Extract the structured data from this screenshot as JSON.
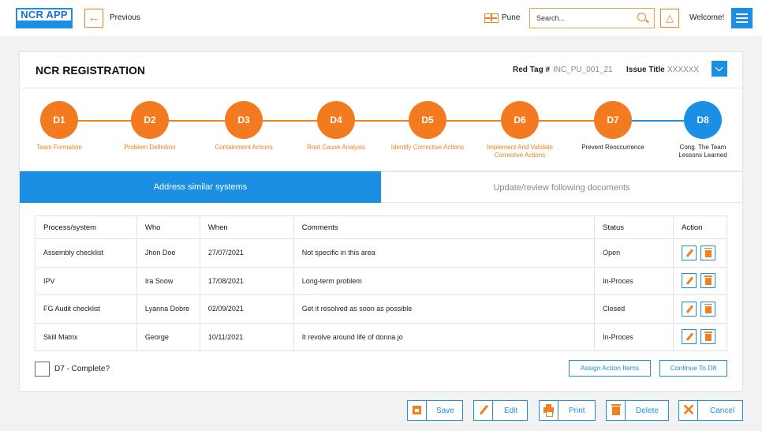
{
  "app": {
    "logo_text": "NCR APP",
    "back_label": "Previous",
    "location": "Pune",
    "search_placeholder": "Search...",
    "welcome": "Welcome!"
  },
  "page": {
    "title": "NCR REGISTRATION",
    "red_tag_label": "Red Tag #",
    "red_tag_value": "INC_PU_001_21",
    "issue_title_label": "Issue Title",
    "issue_title_value": "XXXXXX"
  },
  "steps": [
    {
      "id": "D1",
      "label": "Team Formation",
      "state": "done"
    },
    {
      "id": "D2",
      "label": "Problem Definition",
      "state": "done"
    },
    {
      "id": "D3",
      "label": "Containment Actions",
      "state": "done"
    },
    {
      "id": "D4",
      "label": "Root Cause Analysis",
      "state": "done"
    },
    {
      "id": "D5",
      "label": "Identify Corrective Actions",
      "state": "done"
    },
    {
      "id": "D6",
      "label": "Implement And Validate Corrective Actions",
      "state": "done"
    },
    {
      "id": "D7",
      "label": "Prevent Reoccurrence",
      "state": "active"
    },
    {
      "id": "D8",
      "label": "Cong. The Team Lessons Learned",
      "state": "current"
    }
  ],
  "tabs": {
    "active": "Address similar systems",
    "inactive": "Update/review following documents"
  },
  "table": {
    "headers": [
      "Process/system",
      "Who",
      "When",
      "Comments",
      "Status",
      "Action"
    ],
    "rows": [
      {
        "process": "Assembly checklist",
        "who": "Jhon Doe",
        "when": "27/07/2021",
        "comments": "Not specific in this area",
        "status": "Open"
      },
      {
        "process": "IPV",
        "who": "Ira Snow",
        "when": "17/08/2021",
        "comments": "Long-term problem",
        "status": "In-Proces"
      },
      {
        "process": "FG Audit checklist",
        "who": "Lyanna Dobre",
        "when": "02/09/2021",
        "comments": "Get it resolved as soon as possible",
        "status": "Closed"
      },
      {
        "process": "Skill Matrix",
        "who": "George",
        "when": "10/11/2021",
        "comments": "It revolve around life of donna jo",
        "status": "In-Proces"
      }
    ]
  },
  "form": {
    "complete_label": "D7 - Complete?",
    "assign_label": "Assign Action Items",
    "continue_label": "Continue To D8"
  },
  "footer": {
    "save": "Save",
    "edit": "Edit",
    "print": "Print",
    "delete": "Delete",
    "cancel": "Cancel"
  },
  "colors": {
    "accent_blue": "#1a8fe3",
    "accent_orange": "#f47a20"
  }
}
